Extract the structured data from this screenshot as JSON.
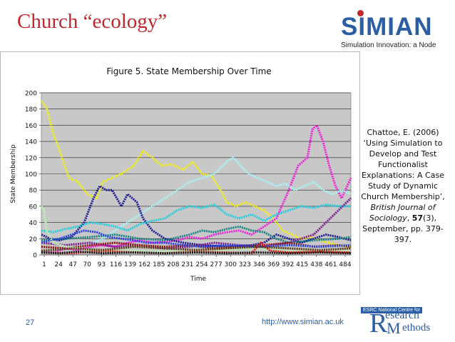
{
  "slide": {
    "title": "Church “ecology”",
    "number": "27",
    "footer_url": "http://www.simian.ac.uk"
  },
  "logo": {
    "word": "SIMIAN",
    "tagline": "Simulation Innovation: a Node"
  },
  "esrc_logo": {
    "top_text": "ESRC National Centre for",
    "R": "R",
    "M": "M",
    "research": "esearch",
    "methods": "ethods"
  },
  "citation": {
    "line1": "Chattoe, E. (2006) ‘Using Simulation to Develop and Test Functionalist Explanations: A Case Study of Dynamic Church Membership’,",
    "journal": "British Journal of Sociology",
    "sep": ", ",
    "volume": "57",
    "pages": "(3), September, pp. 379-397."
  },
  "chart_data": {
    "type": "line",
    "title": "Figure 5. State Membership Over Time",
    "xlabel": "Time",
    "ylabel": "State Membership",
    "ylim": [
      0,
      200
    ],
    "yticks": [
      0,
      20,
      40,
      60,
      80,
      100,
      120,
      140,
      160,
      180,
      200
    ],
    "xlim": [
      1,
      500
    ],
    "xtick_labels": [
      "1",
      "24",
      "47",
      "70",
      "93",
      "116",
      "139",
      "162",
      "185",
      "208",
      "231",
      "254",
      "277",
      "300",
      "323",
      "346",
      "369",
      "392",
      "415",
      "438",
      "461",
      "484"
    ],
    "grid": true,
    "legend": "none",
    "series": [
      {
        "name": "yellow",
        "color": "#f2ee16",
        "x": [
          1,
          10,
          20,
          30,
          45,
          60,
          75,
          90,
          100,
          115,
          130,
          150,
          165,
          180,
          195,
          210,
          230,
          245,
          260,
          275,
          290,
          300,
          315,
          330,
          345,
          360,
          375,
          390,
          405,
          420,
          435,
          450,
          465,
          480,
          500
        ],
        "y": [
          190,
          180,
          150,
          130,
          95,
          90,
          75,
          70,
          90,
          95,
          100,
          110,
          128,
          120,
          110,
          112,
          105,
          115,
          100,
          98,
          80,
          65,
          60,
          65,
          60,
          55,
          45,
          30,
          25,
          20,
          22,
          18,
          15,
          12,
          10
        ]
      },
      {
        "name": "magenta",
        "color": "#ee20d8",
        "x": [
          1,
          20,
          40,
          60,
          80,
          100,
          120,
          140,
          160,
          180,
          200,
          220,
          240,
          260,
          280,
          300,
          320,
          340,
          360,
          380,
          400,
          415,
          430,
          438,
          445,
          455,
          465,
          475,
          485,
          500
        ],
        "y": [
          5,
          3,
          8,
          6,
          10,
          12,
          10,
          15,
          18,
          15,
          16,
          18,
          22,
          20,
          25,
          28,
          30,
          25,
          35,
          45,
          80,
          110,
          120,
          155,
          160,
          140,
          110,
          85,
          70,
          95
        ]
      },
      {
        "name": "light-cyan",
        "color": "#a8f4f6",
        "x": [
          1,
          20,
          40,
          60,
          80,
          100,
          120,
          140,
          160,
          180,
          200,
          220,
          240,
          260,
          280,
          300,
          310,
          320,
          335,
          350,
          365,
          380,
          395,
          410,
          425,
          440,
          455,
          470,
          485,
          500
        ],
        "y": [
          5,
          6,
          8,
          10,
          14,
          20,
          30,
          40,
          50,
          60,
          70,
          80,
          90,
          95,
          100,
          115,
          120,
          112,
          100,
          95,
          90,
          85,
          88,
          80,
          85,
          90,
          80,
          75,
          80,
          75
        ]
      },
      {
        "name": "navy",
        "color": "#1a1a90",
        "x": [
          1,
          15,
          30,
          50,
          70,
          85,
          95,
          105,
          115,
          130,
          140,
          155,
          165,
          180,
          200,
          230,
          260,
          300,
          340,
          360,
          380,
          400,
          420,
          440,
          460,
          480,
          500
        ],
        "y": [
          25,
          20,
          18,
          22,
          40,
          70,
          85,
          80,
          80,
          60,
          75,
          65,
          45,
          30,
          20,
          15,
          12,
          10,
          12,
          15,
          25,
          20,
          15,
          20,
          25,
          22,
          18
        ]
      },
      {
        "name": "cyan",
        "color": "#1ccfe0",
        "x": [
          1,
          20,
          40,
          60,
          80,
          100,
          120,
          140,
          160,
          180,
          200,
          220,
          240,
          260,
          280,
          300,
          320,
          340,
          360,
          380,
          400,
          420,
          440,
          460,
          480,
          500
        ],
        "y": [
          30,
          28,
          32,
          35,
          40,
          38,
          35,
          30,
          38,
          42,
          45,
          55,
          60,
          58,
          62,
          50,
          45,
          50,
          42,
          50,
          55,
          60,
          58,
          62,
          60,
          60
        ]
      },
      {
        "name": "purple",
        "color": "#7b1a8c",
        "x": [
          1,
          40,
          80,
          120,
          160,
          200,
          240,
          280,
          320,
          360,
          400,
          420,
          440,
          460,
          480,
          500
        ],
        "y": [
          15,
          12,
          15,
          10,
          12,
          8,
          10,
          15,
          12,
          10,
          15,
          20,
          25,
          40,
          55,
          70
        ]
      },
      {
        "name": "teal",
        "color": "#178080",
        "x": [
          1,
          40,
          80,
          120,
          160,
          200,
          240,
          260,
          280,
          300,
          320,
          340,
          360,
          380,
          400,
          440,
          480,
          500
        ],
        "y": [
          18,
          20,
          22,
          25,
          20,
          18,
          25,
          30,
          28,
          32,
          35,
          30,
          28,
          20,
          15,
          18,
          20,
          22
        ]
      },
      {
        "name": "maroon",
        "color": "#8c1010",
        "x": [
          1,
          40,
          80,
          120,
          160,
          200,
          240,
          280,
          320,
          360,
          400,
          440,
          480,
          500
        ],
        "y": [
          10,
          8,
          12,
          15,
          12,
          10,
          12,
          8,
          10,
          12,
          15,
          10,
          12,
          10
        ]
      },
      {
        "name": "blue",
        "color": "#2540e0",
        "x": [
          1,
          15,
          30,
          50,
          70,
          90,
          110,
          130,
          150,
          170,
          200,
          230,
          260,
          300,
          350,
          400,
          450,
          500
        ],
        "y": [
          15,
          18,
          20,
          25,
          30,
          28,
          22,
          20,
          18,
          15,
          15,
          12,
          10,
          12,
          10,
          12,
          10,
          12
        ]
      },
      {
        "name": "light-green",
        "color": "#b8f0b0",
        "x": [
          1,
          5,
          10,
          20,
          40,
          60,
          80,
          100,
          150,
          200,
          250,
          300,
          350,
          400,
          450,
          500
        ],
        "y": [
          60,
          55,
          30,
          15,
          10,
          8,
          6,
          5,
          5,
          4,
          5,
          6,
          8,
          5,
          4,
          5
        ]
      },
      {
        "name": "red",
        "color": "#e01818",
        "x": [
          1,
          50,
          100,
          150,
          200,
          250,
          300,
          340,
          355,
          370,
          400,
          450,
          500
        ],
        "y": [
          3,
          2,
          5,
          3,
          2,
          4,
          3,
          2,
          15,
          5,
          3,
          4,
          3
        ]
      },
      {
        "name": "brown",
        "color": "#5a3a10",
        "x": [
          1,
          50,
          100,
          150,
          200,
          250,
          300,
          350,
          400,
          450,
          500
        ],
        "y": [
          5,
          8,
          6,
          10,
          8,
          6,
          8,
          10,
          8,
          6,
          8
        ]
      },
      {
        "name": "black",
        "color": "#111111",
        "x": [
          1,
          30,
          60,
          100,
          150,
          200,
          250,
          300,
          350,
          400,
          450,
          500
        ],
        "y": [
          3,
          2,
          4,
          2,
          3,
          2,
          3,
          2,
          3,
          2,
          3,
          2
        ]
      }
    ]
  }
}
